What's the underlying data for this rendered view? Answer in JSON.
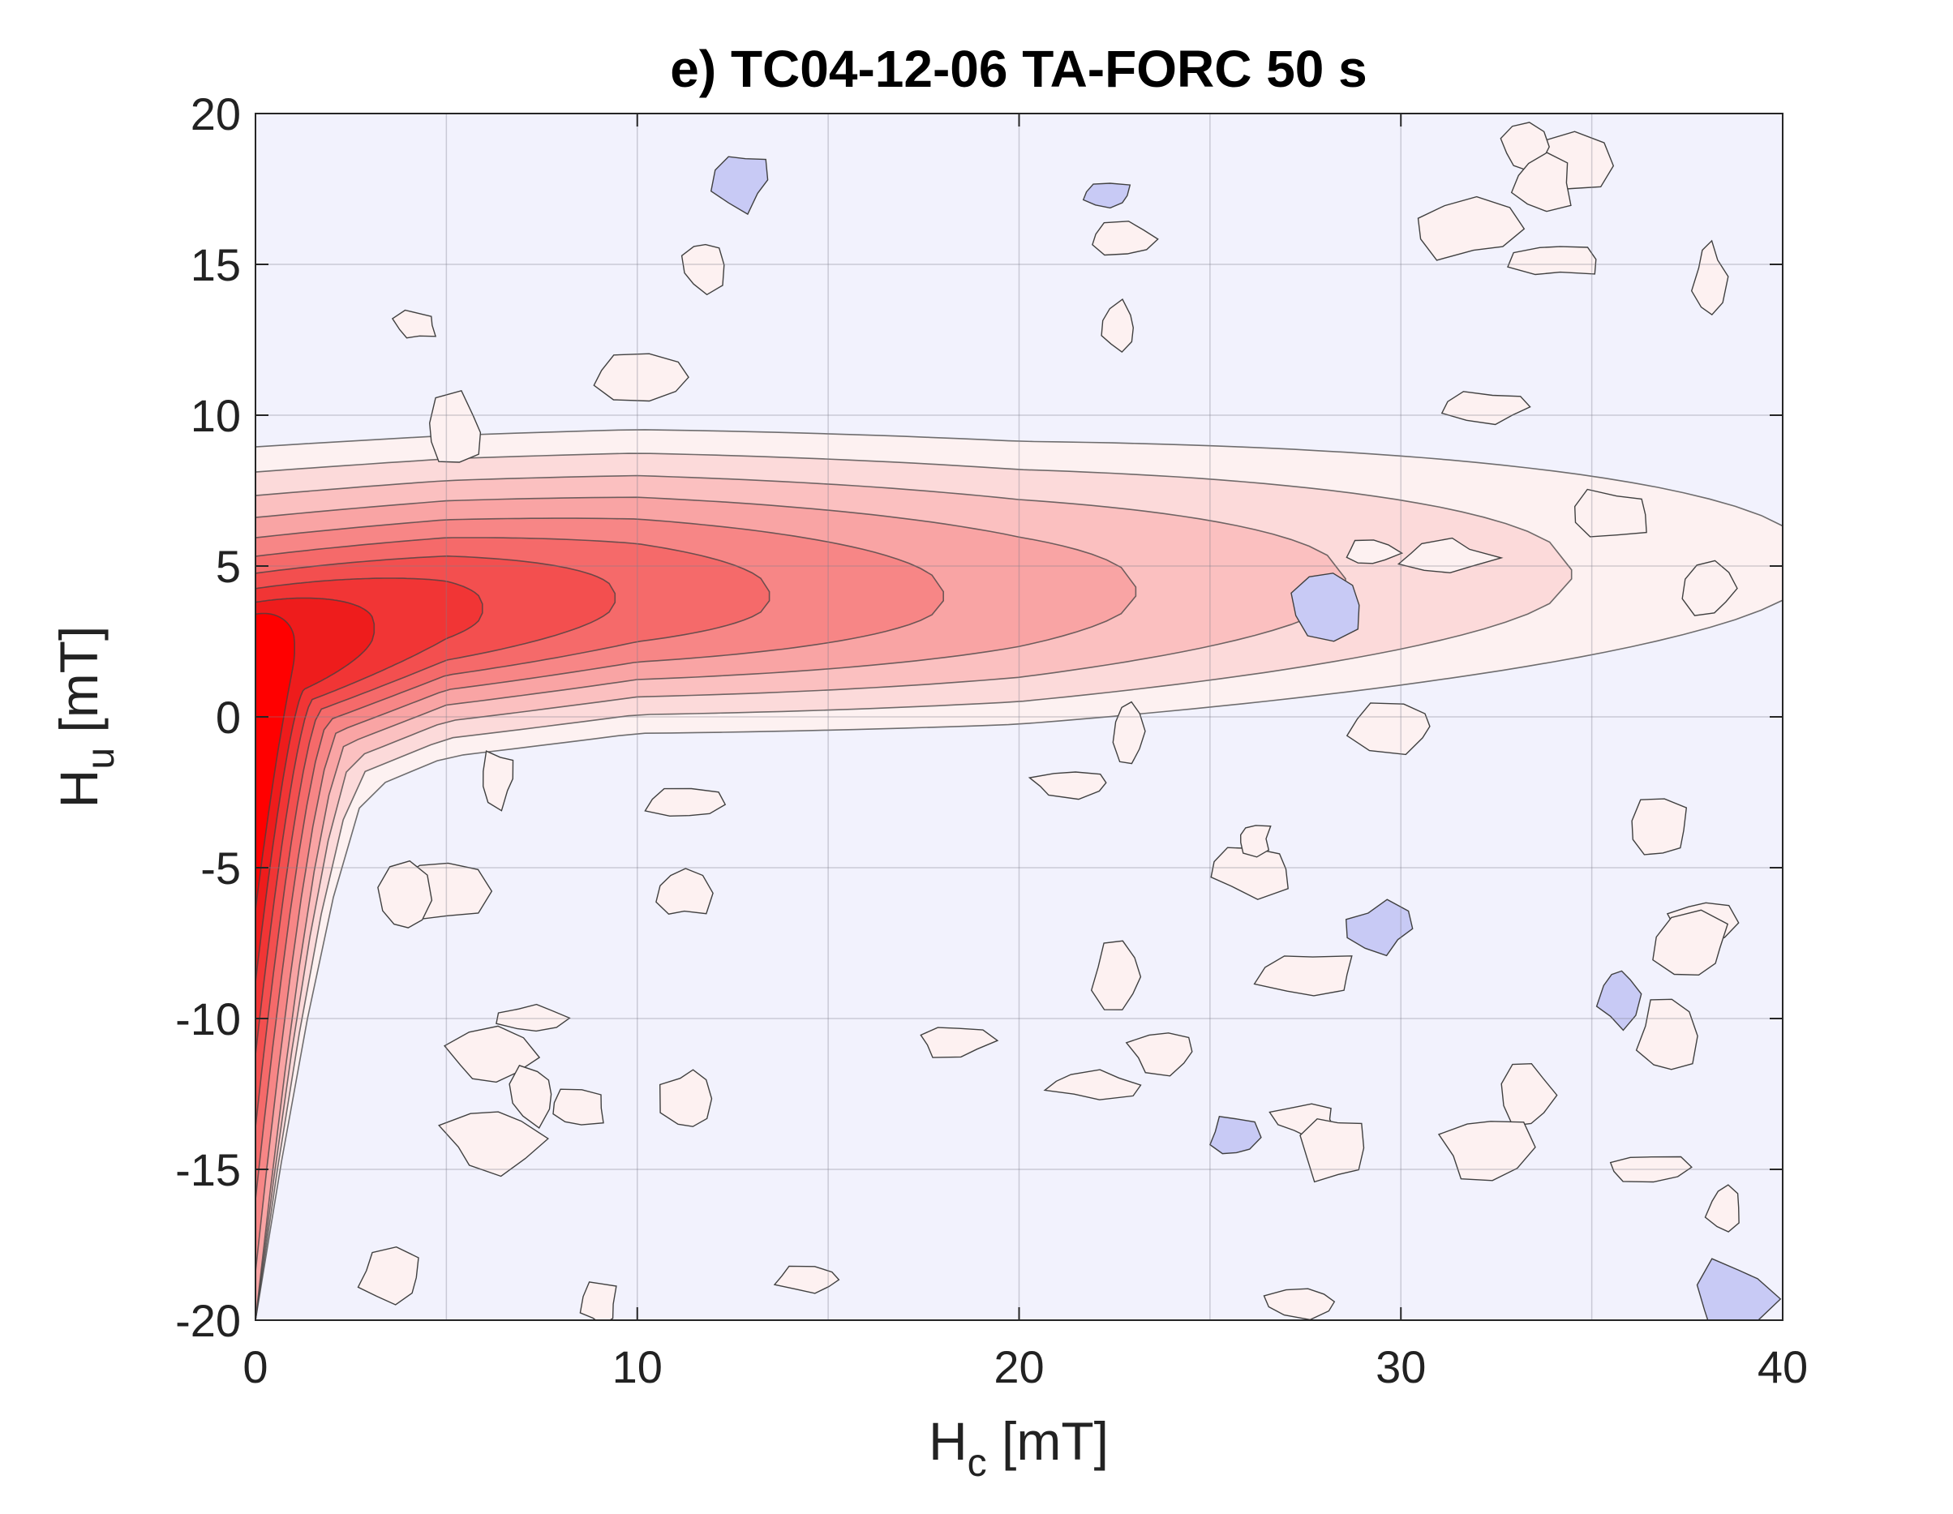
{
  "chart_data": {
    "type": "heatmap",
    "title": "e) TC04-12-06 TA-FORC 50 s",
    "xlabel": {
      "main": "H",
      "sub": "c",
      "unit": " [mT]"
    },
    "ylabel": {
      "main": "H",
      "sub": "u",
      "unit": " [mT]"
    },
    "xlim": [
      0,
      40
    ],
    "ylim": [
      -20,
      20
    ],
    "x_ticks": [
      0,
      10,
      20,
      30,
      40
    ],
    "y_ticks": [
      20,
      15,
      10,
      5,
      0,
      -5,
      -10,
      -15,
      -20
    ],
    "grid": true,
    "colorscale": {
      "background": "#f2f2fd",
      "negative": "#c8caf5",
      "levels": [
        "#fdf1f1",
        "#fcdada",
        "#fbc0c0",
        "#f9a4a4",
        "#f78686",
        "#f56a6a",
        "#f34f4f",
        "#f13535",
        "#ee1c1c",
        "#ff0000"
      ]
    },
    "distribution": {
      "ridge": [
        {
          "hc": 0,
          "hu": 2.0,
          "width": 2.6,
          "extent": 1.0
        },
        {
          "hc": 5,
          "hu": 3.5,
          "width": 1.5,
          "extent": 0.85
        },
        {
          "hc": 10,
          "hu": 4.0,
          "width": 1.3,
          "extent": 0.7
        },
        {
          "hc": 20,
          "hu": 4.0,
          "width": 1.4,
          "extent": 0.5
        },
        {
          "hc": 30,
          "hu": 4.5,
          "width": 1.5,
          "extent": 0.3
        },
        {
          "hc": 40,
          "hu": 5.0,
          "width": 1.6,
          "extent": 0.15
        }
      ],
      "vertical_tail": {
        "hc_width": 2.4,
        "hu_range": [
          -20,
          0
        ]
      },
      "peak": {
        "hc": 0,
        "hu": 2
      }
    }
  }
}
